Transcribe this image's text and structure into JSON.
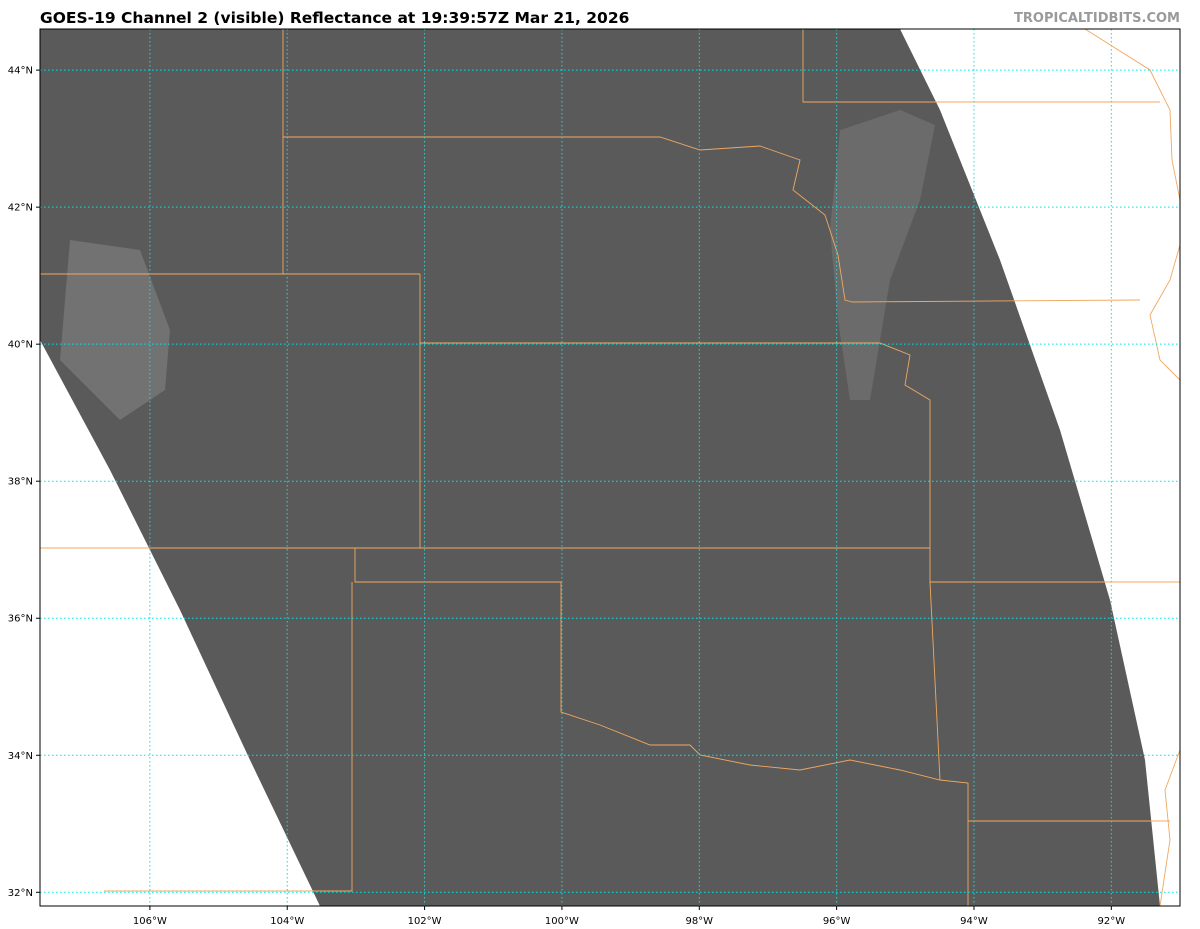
{
  "title": "GOES-19 Channel 2 (visible) Reflectance at 19:39:57Z Mar 21, 2026",
  "watermark": "TROPICALTIDBITS.COM",
  "map": {
    "lon_range": [
      -107.6,
      -91.0
    ],
    "lat_range": [
      31.8,
      44.6
    ],
    "grid_color": "#00e5e5",
    "border_color": "#f0a860",
    "imagery_color": "#5a5a5a",
    "lon_ticks": [
      {
        "value": -106,
        "label": "106°W"
      },
      {
        "value": -104,
        "label": "104°W"
      },
      {
        "value": -102,
        "label": "102°W"
      },
      {
        "value": -100,
        "label": "100°W"
      },
      {
        "value": -98,
        "label": "98°W"
      },
      {
        "value": -96,
        "label": "96°W"
      },
      {
        "value": -94,
        "label": "94°W"
      },
      {
        "value": -92,
        "label": "92°W"
      }
    ],
    "lat_ticks": [
      {
        "value": 44,
        "label": "44°N"
      },
      {
        "value": 42,
        "label": "42°N"
      },
      {
        "value": 40,
        "label": "40°N"
      },
      {
        "value": 38,
        "label": "38°N"
      },
      {
        "value": 36,
        "label": "36°N"
      },
      {
        "value": 34,
        "label": "34°N"
      },
      {
        "value": 32,
        "label": "32°N"
      }
    ]
  }
}
